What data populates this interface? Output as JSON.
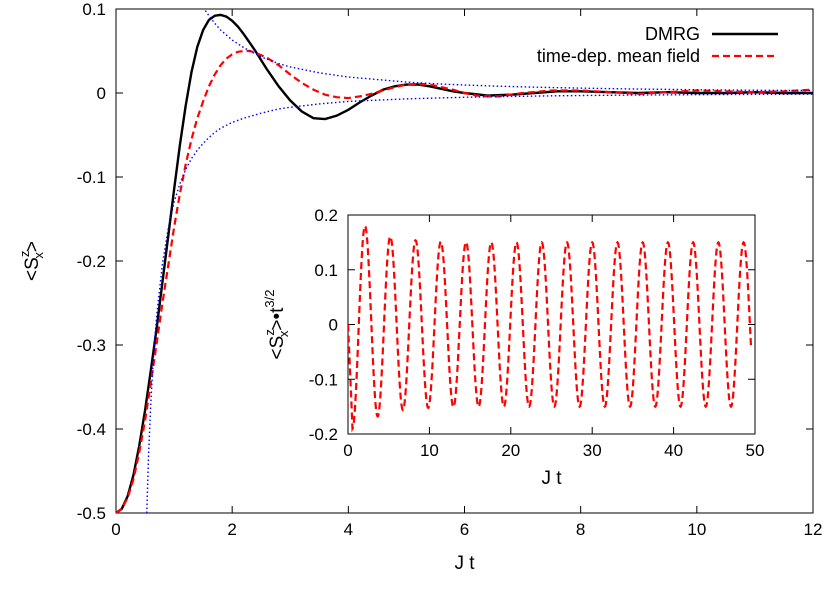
{
  "chart_data": [
    {
      "type": "line",
      "xlabel": "J t",
      "ylabel": "<S_x^z>",
      "ylabel_parts": {
        "open": "<S",
        "sup": "z",
        "sub": "x",
        "close": ">"
      },
      "xlim": [
        0,
        12
      ],
      "ylim": [
        -0.5,
        0.1
      ],
      "xticks": [
        "0",
        "2",
        "4",
        "6",
        "8",
        "10",
        "12"
      ],
      "yticks": [
        "-0.5",
        "-0.4",
        "-0.3",
        "-0.2",
        "-0.1",
        "0",
        "0.1"
      ],
      "legend_position": "top-right",
      "series": [
        {
          "name": "DMRG",
          "color": "#000000",
          "style": "solid",
          "x": [
            0,
            0.1,
            0.2,
            0.3,
            0.4,
            0.5,
            0.6,
            0.7,
            0.8,
            0.9,
            1.0,
            1.1,
            1.2,
            1.3,
            1.4,
            1.5,
            1.6,
            1.7,
            1.8,
            1.9,
            2.0,
            2.1,
            2.2,
            2.4,
            2.6,
            2.8,
            3.0,
            3.2,
            3.4,
            3.6,
            3.8,
            4.0,
            4.2,
            4.4,
            4.6,
            4.8,
            5.0,
            5.2,
            5.4,
            5.6,
            5.8,
            6.0,
            6.4,
            6.8,
            7.2,
            7.6,
            8.0,
            8.5,
            9.0,
            9.5,
            10.0,
            10.5,
            11.0,
            11.5,
            12.0
          ],
          "y": [
            -0.5,
            -0.495,
            -0.48,
            -0.455,
            -0.42,
            -0.378,
            -0.33,
            -0.28,
            -0.225,
            -0.17,
            -0.115,
            -0.062,
            -0.015,
            0.025,
            0.055,
            0.075,
            0.087,
            0.092,
            0.093,
            0.091,
            0.086,
            0.079,
            0.07,
            0.05,
            0.028,
            0.008,
            -0.009,
            -0.022,
            -0.03,
            -0.031,
            -0.027,
            -0.02,
            -0.011,
            -0.003,
            0.004,
            0.008,
            0.01,
            0.01,
            0.008,
            0.005,
            0.002,
            0.0,
            -0.003,
            -0.002,
            0.0,
            0.002,
            0.002,
            0.001,
            0.0,
            0.001,
            0.0,
            0.0,
            0.001,
            0.0,
            0.0
          ]
        },
        {
          "name": "time-dep. mean field",
          "color": "#ff0000",
          "style": "dashed",
          "x": [
            0,
            0.1,
            0.2,
            0.3,
            0.4,
            0.5,
            0.6,
            0.7,
            0.8,
            0.9,
            1.0,
            1.1,
            1.2,
            1.3,
            1.4,
            1.5,
            1.6,
            1.7,
            1.8,
            1.9,
            2.0,
            2.1,
            2.2,
            2.3,
            2.4,
            2.5,
            2.6,
            2.8,
            3.0,
            3.2,
            3.4,
            3.6,
            3.8,
            4.0,
            4.2,
            4.4,
            4.6,
            4.8,
            5.0,
            5.2,
            5.4,
            5.6,
            5.8,
            6.0,
            6.2,
            6.4,
            6.6,
            6.8,
            7.0,
            7.5,
            8.0,
            8.5,
            9.0,
            9.5,
            10.0,
            10.5,
            11.0,
            11.5,
            12.0
          ],
          "y": [
            -0.5,
            -0.495,
            -0.482,
            -0.46,
            -0.428,
            -0.39,
            -0.345,
            -0.298,
            -0.25,
            -0.205,
            -0.16,
            -0.12,
            -0.085,
            -0.055,
            -0.03,
            -0.01,
            0.008,
            0.022,
            0.033,
            0.041,
            0.046,
            0.049,
            0.05,
            0.05,
            0.048,
            0.045,
            0.042,
            0.033,
            0.022,
            0.012,
            0.004,
            -0.002,
            -0.005,
            -0.006,
            -0.004,
            -0.001,
            0.003,
            0.007,
            0.01,
            0.011,
            0.01,
            0.007,
            0.004,
            0.0,
            -0.003,
            -0.004,
            -0.004,
            -0.002,
            0.0,
            0.003,
            0.003,
            0.001,
            -0.001,
            0.001,
            0.003,
            0.002,
            0.001,
            0.002,
            0.004
          ]
        },
        {
          "name": "",
          "color": "#0000ff",
          "style": "dotted",
          "x": [
            0.53,
            0.56,
            0.6,
            0.65,
            0.7,
            0.8,
            0.9,
            1.0,
            1.1,
            1.2,
            1.3,
            1.4,
            1.5,
            1.6,
            1.7,
            1.8,
            2.0,
            2.2,
            2.5,
            2.8,
            3.0,
            3.5,
            4.0,
            4.5,
            5.0,
            5.5,
            6.0,
            6.5,
            7.0,
            7.5,
            8.0,
            8.5,
            9.0,
            9.5,
            10.0,
            10.5,
            11.0,
            11.5,
            12.0
          ],
          "y": [
            -0.5,
            -0.432,
            -0.368,
            -0.308,
            -0.265,
            -0.203,
            -0.161,
            -0.13,
            -0.108,
            -0.091,
            -0.078,
            -0.068,
            -0.06,
            -0.053,
            -0.047,
            -0.042,
            -0.035,
            -0.03,
            -0.024,
            -0.019,
            -0.017,
            -0.013,
            -0.01,
            -0.0085,
            -0.007,
            -0.006,
            -0.0051,
            -0.0044,
            -0.0039,
            -0.0034,
            -0.003,
            -0.0027,
            -0.0024,
            -0.0022,
            -0.002,
            -0.0018,
            -0.0016,
            -0.0015,
            -0.0014
          ]
        },
        {
          "name": "",
          "color": "#0000ff",
          "style": "dotted",
          "x": [
            1.5,
            1.6,
            1.7,
            1.8,
            2.0,
            2.2,
            2.5,
            2.8,
            3.0,
            3.5,
            4.0,
            4.5,
            5.0,
            5.5,
            6.0,
            6.5,
            7.0,
            7.5,
            8.0,
            8.5,
            9.0,
            9.5,
            10.0,
            10.5,
            11.0,
            11.5,
            12.0
          ],
          "y": [
            0.102,
            0.092,
            0.083,
            0.075,
            0.063,
            0.054,
            0.043,
            0.035,
            0.031,
            0.024,
            0.019,
            0.016,
            0.013,
            0.011,
            0.0095,
            0.0083,
            0.0073,
            0.0065,
            0.0058,
            0.0052,
            0.0047,
            0.0043,
            0.0039,
            0.0036,
            0.0033,
            0.0031,
            0.0029
          ]
        }
      ]
    },
    {
      "type": "line",
      "xlabel": "J t",
      "ylabel": "<S_x^z>•t^3/2",
      "ylabel_parts": {
        "open": "<S",
        "sup": "z",
        "sub": "x",
        "close": ">•t",
        "sup2": "3/2"
      },
      "xlim": [
        0,
        50
      ],
      "ylim": [
        -0.2,
        0.2
      ],
      "xticks": [
        "0",
        "10",
        "20",
        "30",
        "40",
        "50"
      ],
      "yticks": [
        "-0.2",
        "-0.1",
        "0",
        "0.1",
        "0.2"
      ],
      "series": [
        {
          "name": "",
          "color": "#ff0000",
          "style": "dashed",
          "oscillation": {
            "period": 3.1,
            "first_min": [
              0.55,
              -0.19
            ],
            "first_max": [
              2.1,
              0.18
            ],
            "amplitude_late": 0.15,
            "x_end": 49.5
          }
        }
      ]
    }
  ]
}
